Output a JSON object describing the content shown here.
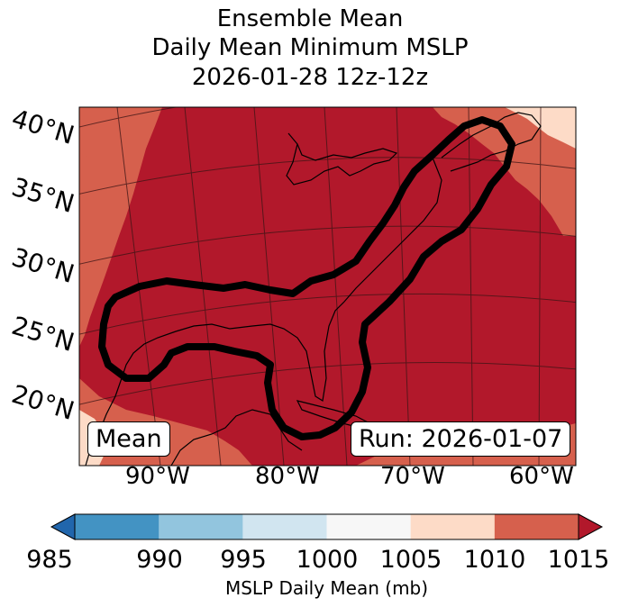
{
  "title": {
    "line1": "Ensemble Mean",
    "line2": "Daily Mean Minimum MSLP",
    "line3": "2026-01-28 12z-12z"
  },
  "map": {
    "lat_labels": [
      "40°N",
      "35°N",
      "30°N",
      "25°N",
      "20°N"
    ],
    "lon_labels": [
      "90°W",
      "80°W",
      "70°W",
      "60°W"
    ],
    "mean_label": "Mean",
    "run_label": "Run: 2026-01-07",
    "fill_colors": {
      "dark_red": "#b2182b",
      "mid_red": "#d6604d",
      "light_peach": "#fddbc7"
    },
    "contour_color": "#000000"
  },
  "colorbar": {
    "label": "MSLP Daily Mean (mb)",
    "ticks": [
      "985",
      "990",
      "995",
      "1000",
      "1005",
      "1010",
      "1015"
    ],
    "colors": [
      "#2166ac",
      "#4393c3",
      "#92c5de",
      "#d1e5f0",
      "#f7f7f7",
      "#fddbc7",
      "#d6604d",
      "#b2182b"
    ]
  }
}
